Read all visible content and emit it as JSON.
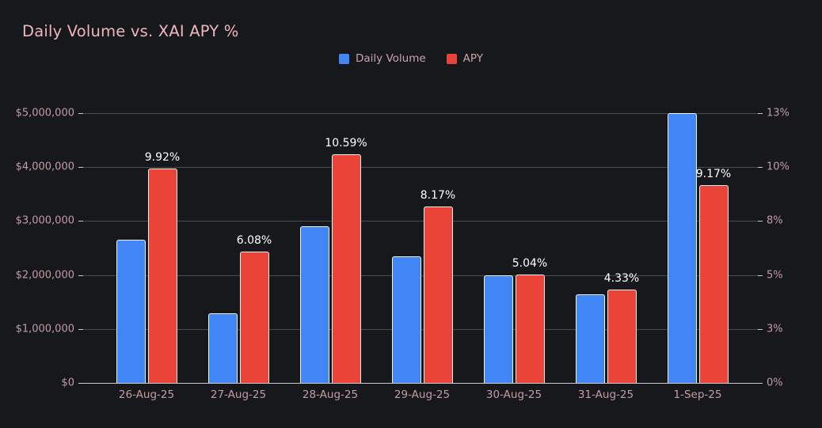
{
  "title": "Daily Volume vs. XAI APY %",
  "legend": [
    {
      "label": "Daily Volume",
      "color": "#4285f4"
    },
    {
      "label": "APY",
      "color": "#ea4337"
    }
  ],
  "colors": {
    "background": "#16181c",
    "title_text": "#eeb7bc",
    "axis_text": "#c49ca1",
    "grid_line": "#474a50",
    "axis_line": "#c9cacc",
    "volume_bar": "#4285f4",
    "apy_bar": "#ea4337",
    "bar_border": "#f4f2ef",
    "value_label": "#ffffff"
  },
  "chart_data": {
    "type": "bar",
    "title": "Daily Volume vs. XAI APY %",
    "categories": [
      "26-Aug-25",
      "27-Aug-25",
      "28-Aug-25",
      "29-Aug-25",
      "30-Aug-25",
      "31-Aug-25",
      "1-Sep-25"
    ],
    "series": [
      {
        "name": "Daily Volume",
        "axis": "left",
        "color": "#4285f4",
        "values": [
          2650000,
          1290000,
          2910000,
          2340000,
          2000000,
          1640000,
          5000000
        ]
      },
      {
        "name": "APY",
        "axis": "right",
        "color": "#ea4337",
        "values": [
          9.92,
          6.08,
          10.59,
          8.17,
          5.04,
          4.33,
          9.17
        ],
        "value_labels": [
          "9.92%",
          "6.08%",
          "10.59%",
          "8.17%",
          "5.04%",
          "4.33%",
          "9.17%"
        ]
      }
    ],
    "left_axis": {
      "tick_labels": [
        "$5,000,000",
        "$4,000,000",
        "$3,000,000",
        "$2,000,000",
        "$1,000,000",
        "$0"
      ],
      "min": 0,
      "max": 5000000
    },
    "right_axis": {
      "tick_labels": [
        "13%",
        "10%",
        "8%",
        "5%",
        "3%",
        "0%"
      ],
      "min": 0,
      "max": 12.5
    },
    "grid": true,
    "legend_position": "top-center",
    "value_labels_on": "APY"
  }
}
